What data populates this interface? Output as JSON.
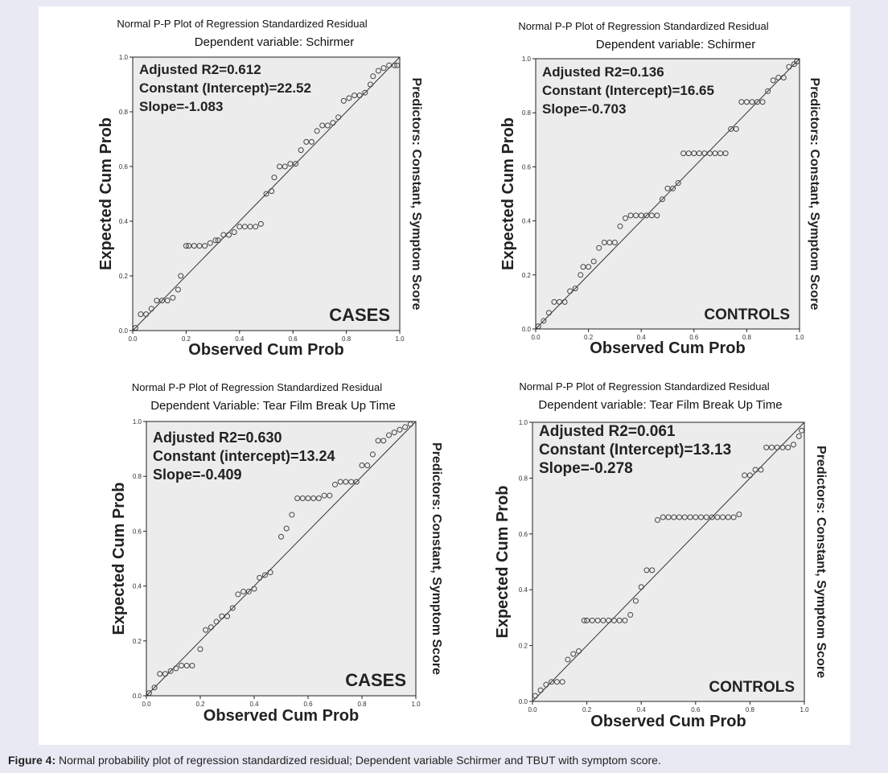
{
  "caption": {
    "label": "Figure 4:",
    "text": " Normal probability plot of regression standardized residual; Dependent variable Schirmer and TBUT with symptom score."
  },
  "colors": {
    "plot_bg": "#ececec",
    "page_bg": "#e9e9f3",
    "line": "#333333",
    "marker": "#444444"
  },
  "chart_data": [
    {
      "type": "scatter",
      "title": "Normal P-P Plot of Regression Standardized Residual",
      "subtitle": "Dependent variable: Schirmer",
      "xlabel": "Observed Cum Prob",
      "ylabel": "Expected Cum Prob",
      "side_label": "Predictors: Constant, Symptom Score",
      "group_label": "CASES",
      "xlim": [
        0,
        1
      ],
      "ylim": [
        0,
        1
      ],
      "xticks": [
        "0.0",
        "0.2",
        "0.4",
        "0.6",
        "0.8",
        "1.0"
      ],
      "yticks": [
        "0.0",
        "0.2",
        "0.4",
        "0.6",
        "0.8",
        "1.0"
      ],
      "annotations": [
        "Adjusted R2=0.612",
        "Constant (Intercept)=22.52",
        "Slope=-1.083"
      ],
      "reference_line": [
        [
          0,
          0
        ],
        [
          1,
          1
        ]
      ],
      "series": [
        {
          "x": [
            0.01,
            0.03,
            0.05,
            0.07,
            0.09,
            0.11,
            0.13,
            0.15,
            0.17,
            0.18,
            0.2,
            0.21,
            0.23,
            0.25,
            0.27,
            0.29,
            0.31,
            0.32,
            0.34,
            0.36,
            0.38,
            0.4,
            0.42,
            0.44,
            0.46,
            0.48,
            0.5,
            0.52,
            0.53,
            0.55,
            0.57,
            0.59,
            0.61,
            0.63,
            0.65,
            0.67,
            0.69,
            0.71,
            0.73,
            0.75,
            0.77,
            0.79,
            0.81,
            0.83,
            0.85,
            0.87,
            0.89,
            0.9,
            0.92,
            0.94,
            0.96,
            0.98,
            0.99
          ],
          "y": [
            0.01,
            0.06,
            0.06,
            0.08,
            0.11,
            0.11,
            0.11,
            0.12,
            0.15,
            0.2,
            0.31,
            0.31,
            0.31,
            0.31,
            0.31,
            0.32,
            0.33,
            0.33,
            0.35,
            0.35,
            0.36,
            0.38,
            0.38,
            0.38,
            0.38,
            0.39,
            0.5,
            0.51,
            0.56,
            0.6,
            0.6,
            0.61,
            0.61,
            0.66,
            0.69,
            0.69,
            0.73,
            0.75,
            0.75,
            0.76,
            0.78,
            0.84,
            0.85,
            0.86,
            0.86,
            0.87,
            0.9,
            0.93,
            0.95,
            0.96,
            0.97,
            0.97,
            0.97
          ]
        }
      ]
    },
    {
      "type": "scatter",
      "title": "Normal P-P Plot of Regression Standardized Residual",
      "subtitle": "Dependent variable: Schirmer",
      "xlabel": "Observed Cum Prob",
      "ylabel": "Expected Cum Prob",
      "side_label": "Predictors: Constant, Symptom Score",
      "group_label": "CONTROLS",
      "xlim": [
        0,
        1
      ],
      "ylim": [
        0,
        1
      ],
      "xticks": [
        "0.0",
        "0.2",
        "0.4",
        "0.6",
        "0.8",
        "1.0"
      ],
      "yticks": [
        "0.0",
        "0.2",
        "0.4",
        "0.6",
        "0.8",
        "1.0"
      ],
      "annotations": [
        "Adjusted R2=0.136",
        "Constant (Intercept)=16.65",
        "Slope=-0.703"
      ],
      "reference_line": [
        [
          0,
          0
        ],
        [
          1,
          1
        ]
      ],
      "series": [
        {
          "x": [
            0.01,
            0.03,
            0.05,
            0.07,
            0.09,
            0.11,
            0.13,
            0.15,
            0.17,
            0.18,
            0.2,
            0.22,
            0.24,
            0.26,
            0.28,
            0.3,
            0.32,
            0.34,
            0.36,
            0.38,
            0.4,
            0.42,
            0.44,
            0.46,
            0.48,
            0.5,
            0.52,
            0.54,
            0.56,
            0.58,
            0.6,
            0.62,
            0.64,
            0.66,
            0.68,
            0.7,
            0.72,
            0.74,
            0.76,
            0.78,
            0.8,
            0.82,
            0.84,
            0.86,
            0.88,
            0.9,
            0.92,
            0.94,
            0.96,
            0.98,
            0.99
          ],
          "y": [
            0.01,
            0.03,
            0.06,
            0.1,
            0.1,
            0.1,
            0.14,
            0.15,
            0.2,
            0.23,
            0.23,
            0.25,
            0.3,
            0.32,
            0.32,
            0.32,
            0.38,
            0.41,
            0.42,
            0.42,
            0.42,
            0.42,
            0.42,
            0.42,
            0.48,
            0.52,
            0.52,
            0.54,
            0.65,
            0.65,
            0.65,
            0.65,
            0.65,
            0.65,
            0.65,
            0.65,
            0.65,
            0.74,
            0.74,
            0.84,
            0.84,
            0.84,
            0.84,
            0.84,
            0.88,
            0.92,
            0.93,
            0.93,
            0.97,
            0.98,
            0.99
          ]
        }
      ]
    },
    {
      "type": "scatter",
      "title": "Normal P-P Plot of Regression Standardized Residual",
      "subtitle": "Dependent Variable: Tear Film Break Up Time",
      "xlabel": "Observed Cum Prob",
      "ylabel": "Expected Cum Prob",
      "side_label": "Predictors: Constant, Symptom Score",
      "group_label": "CASES",
      "xlim": [
        0,
        1
      ],
      "ylim": [
        0,
        1
      ],
      "xticks": [
        "0.0",
        "0.2",
        "0.4",
        "0.6",
        "0.8",
        "1.0"
      ],
      "yticks": [
        "0.0",
        "0.2",
        "0.4",
        "0.6",
        "0.8",
        "1.0"
      ],
      "annotations": [
        "Adjusted R2=0.630",
        "Constant (intercept)=13.24",
        "Slope=-0.409"
      ],
      "reference_line": [
        [
          0,
          0
        ],
        [
          1,
          1
        ]
      ],
      "series": [
        {
          "x": [
            0.01,
            0.03,
            0.05,
            0.07,
            0.09,
            0.11,
            0.13,
            0.15,
            0.17,
            0.2,
            0.22,
            0.24,
            0.26,
            0.28,
            0.3,
            0.32,
            0.34,
            0.36,
            0.38,
            0.4,
            0.42,
            0.44,
            0.46,
            0.5,
            0.52,
            0.54,
            0.56,
            0.58,
            0.6,
            0.62,
            0.64,
            0.66,
            0.68,
            0.7,
            0.72,
            0.74,
            0.76,
            0.78,
            0.8,
            0.82,
            0.84,
            0.86,
            0.88,
            0.9,
            0.92,
            0.94,
            0.96,
            0.98
          ],
          "y": [
            0.01,
            0.03,
            0.08,
            0.08,
            0.09,
            0.1,
            0.11,
            0.11,
            0.11,
            0.17,
            0.24,
            0.25,
            0.27,
            0.29,
            0.29,
            0.32,
            0.37,
            0.38,
            0.38,
            0.39,
            0.43,
            0.44,
            0.45,
            0.58,
            0.61,
            0.66,
            0.72,
            0.72,
            0.72,
            0.72,
            0.72,
            0.73,
            0.73,
            0.77,
            0.78,
            0.78,
            0.78,
            0.78,
            0.84,
            0.84,
            0.88,
            0.93,
            0.93,
            0.95,
            0.96,
            0.97,
            0.98,
            0.99
          ]
        }
      ]
    },
    {
      "type": "scatter",
      "title": "Normal P-P Plot of Regression Standardized Residual",
      "subtitle": "Dependent variable: Tear Film Break Up Time",
      "xlabel": "Observed Cum Prob",
      "ylabel": "Expected Cum Prob",
      "side_label": "Predictors: Constant, Symptom Score",
      "group_label": "CONTROLS",
      "xlim": [
        0,
        1
      ],
      "ylim": [
        0,
        1
      ],
      "xticks": [
        "0.0",
        "0.2",
        "0.4",
        "0.6",
        "0.8",
        "1.0"
      ],
      "yticks": [
        "0.0",
        "0.2",
        "0.4",
        "0.6",
        "0.8",
        "1.0"
      ],
      "annotations": [
        "Adjusted R2=0.061",
        "Constant (Intercept)=13.13",
        "Slope=-0.278"
      ],
      "reference_line": [
        [
          0,
          0
        ],
        [
          1,
          1
        ]
      ],
      "series": [
        {
          "x": [
            0.01,
            0.03,
            0.05,
            0.07,
            0.09,
            0.11,
            0.13,
            0.15,
            0.17,
            0.19,
            0.2,
            0.22,
            0.24,
            0.26,
            0.28,
            0.3,
            0.32,
            0.34,
            0.36,
            0.38,
            0.4,
            0.42,
            0.44,
            0.46,
            0.48,
            0.5,
            0.52,
            0.54,
            0.56,
            0.58,
            0.6,
            0.62,
            0.64,
            0.66,
            0.68,
            0.7,
            0.72,
            0.74,
            0.76,
            0.78,
            0.8,
            0.82,
            0.84,
            0.86,
            0.88,
            0.9,
            0.92,
            0.94,
            0.96,
            0.98,
            0.99
          ],
          "y": [
            0.02,
            0.04,
            0.06,
            0.07,
            0.07,
            0.07,
            0.15,
            0.17,
            0.18,
            0.29,
            0.29,
            0.29,
            0.29,
            0.29,
            0.29,
            0.29,
            0.29,
            0.29,
            0.31,
            0.36,
            0.41,
            0.47,
            0.47,
            0.65,
            0.66,
            0.66,
            0.66,
            0.66,
            0.66,
            0.66,
            0.66,
            0.66,
            0.66,
            0.66,
            0.66,
            0.66,
            0.66,
            0.66,
            0.67,
            0.81,
            0.81,
            0.83,
            0.83,
            0.91,
            0.91,
            0.91,
            0.91,
            0.91,
            0.92,
            0.95,
            0.97
          ]
        }
      ]
    }
  ]
}
